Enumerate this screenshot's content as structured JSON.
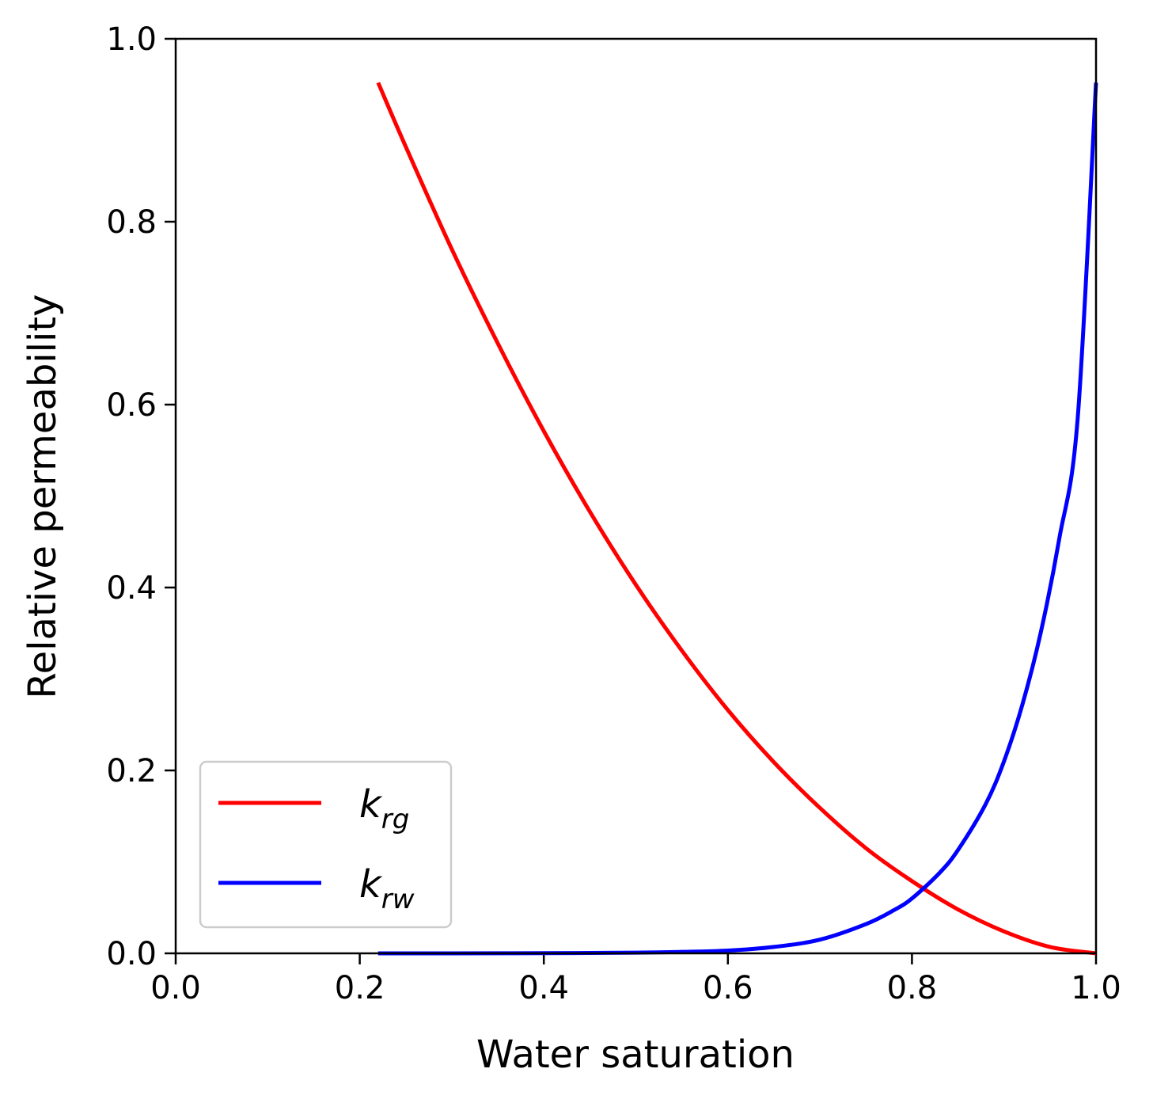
{
  "chart_data": {
    "type": "line",
    "title": "",
    "xlabel": "Water saturation",
    "ylabel": "Relative permeability",
    "xlim": [
      0.0,
      1.0
    ],
    "ylim": [
      0.0,
      1.0
    ],
    "grid": false,
    "legend_position": "lower-left",
    "xticks": [
      "0.0",
      "0.2",
      "0.4",
      "0.6",
      "0.8",
      "1.0"
    ],
    "yticks": [
      "0.0",
      "0.2",
      "0.4",
      "0.6",
      "0.8",
      "1.0"
    ],
    "xtick_values": [
      0.0,
      0.2,
      0.4,
      0.6,
      0.8,
      1.0
    ],
    "ytick_values": [
      0.0,
      0.2,
      0.4,
      0.6,
      0.8,
      1.0
    ],
    "series": [
      {
        "name": "k_rg",
        "legend_main": "k",
        "legend_sub": "rg",
        "color": "#ff0000",
        "x": [
          0.22,
          0.25,
          0.3,
          0.35,
          0.4,
          0.45,
          0.5,
          0.55,
          0.6,
          0.65,
          0.7,
          0.75,
          0.8,
          0.85,
          0.9,
          0.95,
          1.0
        ],
        "y": [
          0.952,
          0.882,
          0.77,
          0.667,
          0.571,
          0.483,
          0.403,
          0.331,
          0.266,
          0.209,
          0.159,
          0.115,
          0.079,
          0.048,
          0.024,
          0.007,
          0.0
        ]
      },
      {
        "name": "k_rw",
        "legend_main": "k",
        "legend_sub": "rw",
        "color": "#0000ff",
        "x": [
          0.22,
          0.3,
          0.4,
          0.5,
          0.55,
          0.6,
          0.65,
          0.7,
          0.75,
          0.78,
          0.8,
          0.83,
          0.85,
          0.88,
          0.9,
          0.92,
          0.94,
          0.96,
          0.98,
          1.0
        ],
        "y": [
          0.0,
          0.0,
          0.0002,
          0.0008,
          0.0016,
          0.003,
          0.007,
          0.015,
          0.032,
          0.047,
          0.06,
          0.088,
          0.113,
          0.163,
          0.21,
          0.272,
          0.351,
          0.453,
          0.584,
          0.952
        ]
      }
    ]
  }
}
